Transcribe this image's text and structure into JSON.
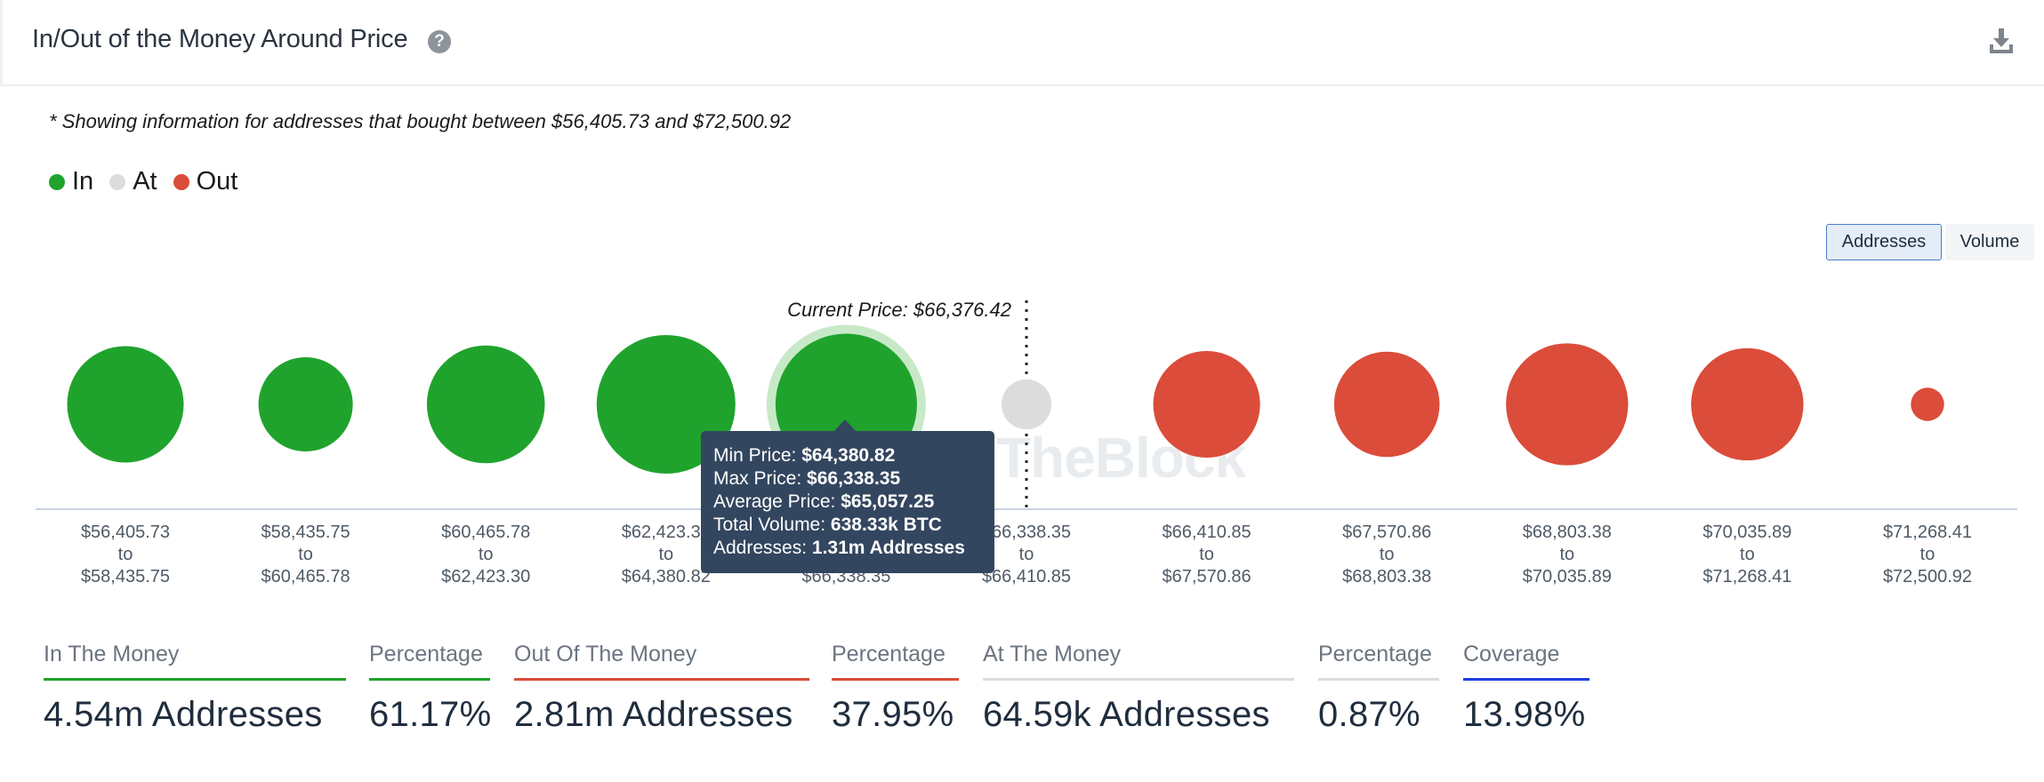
{
  "header": {
    "title": "In/Out of the Money Around Price",
    "help_icon": "question-circle-icon",
    "download_icon": "download-icon"
  },
  "note": "* Showing information for addresses that bought between $56,405.73 and $72,500.92",
  "legend": [
    {
      "label": "In",
      "color": "#1fa32d"
    },
    {
      "label": "At",
      "color": "#dcdcdc"
    },
    {
      "label": "Out",
      "color": "#db4c3a"
    }
  ],
  "toggle": {
    "addresses": "Addresses",
    "volume": "Volume",
    "selected": "Addresses"
  },
  "watermark": "TheBlock",
  "current_price_label": "Current Price: $66,376.42",
  "chart_data": {
    "type": "bubble",
    "colors": {
      "in": "#1fa32d",
      "at": "#dcdcdc",
      "out": "#db4c3a"
    },
    "current_price": 66376.42,
    "buckets": [
      {
        "from": "$56,405.73",
        "to": "$58,435.75",
        "status": "in",
        "relative_size": 0.84
      },
      {
        "from": "$58,435.75",
        "to": "$60,465.78",
        "status": "in",
        "relative_size": 0.68
      },
      {
        "from": "$60,465.78",
        "to": "$62,423.30",
        "status": "in",
        "relative_size": 0.85
      },
      {
        "from": "$62,423.30",
        "to": "$64,380.82",
        "status": "in",
        "relative_size": 1.0
      },
      {
        "from": "$64,380.82",
        "to": "$66,338.35",
        "status": "in",
        "relative_size": 1.02,
        "highlighted": true
      },
      {
        "from": "$66,338.35",
        "to": "$66,410.85",
        "status": "at",
        "relative_size": 0.36
      },
      {
        "from": "$66,410.85",
        "to": "$67,570.86",
        "status": "out",
        "relative_size": 0.77
      },
      {
        "from": "$67,570.86",
        "to": "$68,803.38",
        "status": "out",
        "relative_size": 0.76
      },
      {
        "from": "$68,803.38",
        "to": "$70,035.89",
        "status": "out",
        "relative_size": 0.88
      },
      {
        "from": "$70,035.89",
        "to": "$71,268.41",
        "status": "out",
        "relative_size": 0.81
      },
      {
        "from": "$71,268.41",
        "to": "$72,500.92",
        "status": "out",
        "relative_size": 0.24
      }
    ]
  },
  "tooltip": {
    "rows": [
      {
        "label": "Min Price: ",
        "value": "$64,380.82"
      },
      {
        "label": "Max Price: ",
        "value": "$66,338.35"
      },
      {
        "label": "Average Price: ",
        "value": "$65,057.25"
      },
      {
        "label": "Total Volume: ",
        "value": "638.33k BTC"
      },
      {
        "label": "Addresses: ",
        "value": "1.31m Addresses"
      }
    ]
  },
  "stats": [
    {
      "label": "In The Money",
      "value": "4.54m Addresses",
      "color": "#1fa32d"
    },
    {
      "label": "Percentage",
      "value": "61.17%",
      "color": "#1fa32d"
    },
    {
      "label": "Out Of The Money",
      "value": "2.81m Addresses",
      "color": "#db4c3a"
    },
    {
      "label": "Percentage",
      "value": "37.95%",
      "color": "#db4c3a"
    },
    {
      "label": "At The Money",
      "value": "64.59k Addresses",
      "color": "#dcdcdc"
    },
    {
      "label": "Percentage",
      "value": "0.87%",
      "color": "#dcdcdc"
    },
    {
      "label": "Coverage",
      "value": "13.98%",
      "color": "#1f3de0"
    }
  ]
}
